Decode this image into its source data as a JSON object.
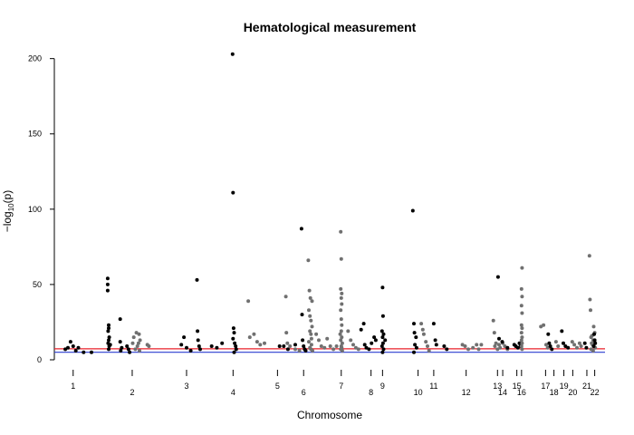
{
  "chart_data": {
    "type": "scatter",
    "title": "Hematological measurement",
    "xlabel": "Chromosome",
    "ylabel": "-log10(p)",
    "ylabel_parts": {
      "prefix": "−log",
      "sub": "10",
      "suffix": "(p)"
    },
    "ylim": [
      0,
      205
    ],
    "yticks": [
      0,
      50,
      100,
      150,
      200
    ],
    "xlim": [
      0,
      100
    ],
    "grid": false,
    "legend": "none",
    "colors": {
      "odd_chromosome": "#000000",
      "even_chromosome": "#707070",
      "threshold_red": "#e8202a",
      "threshold_blue": "#2a3bd0"
    },
    "thresholds": [
      {
        "name": "threshold-red",
        "value": 7.3,
        "color": "#e8202a"
      },
      {
        "name": "threshold-blue",
        "value": 5,
        "color": "#2a3bd0"
      }
    ],
    "chromosome_ticks": [
      {
        "label": "1",
        "pos": 1.0,
        "row": 0
      },
      {
        "label": "2",
        "pos": 12.3,
        "row": 1
      },
      {
        "label": "3",
        "pos": 22.7,
        "row": 0
      },
      {
        "label": "4",
        "pos": 31.6,
        "row": 1
      },
      {
        "label": "5",
        "pos": 40.1,
        "row": 0
      },
      {
        "label": "6",
        "pos": 45.1,
        "row": 1
      },
      {
        "label": "7",
        "pos": 52.3,
        "row": 0
      },
      {
        "label": "8",
        "pos": 58.0,
        "row": 1
      },
      {
        "label": "9",
        "pos": 60.2,
        "row": 0
      },
      {
        "label": "10",
        "pos": 67.0,
        "row": 1
      },
      {
        "label": "11",
        "pos": 70.0,
        "row": 0
      },
      {
        "label": "12",
        "pos": 76.2,
        "row": 1
      },
      {
        "label": "13",
        "pos": 82.2,
        "row": 0
      },
      {
        "label": "14",
        "pos": 83.2,
        "row": 1
      },
      {
        "label": "15",
        "pos": 85.9,
        "row": 0
      },
      {
        "label": "16",
        "pos": 86.8,
        "row": 1
      },
      {
        "label": "17",
        "pos": 91.4,
        "row": 0
      },
      {
        "label": "18",
        "pos": 93.0,
        "row": 1
      },
      {
        "label": "19",
        "pos": 94.9,
        "row": 0
      },
      {
        "label": "20",
        "pos": 96.6,
        "row": 1
      },
      {
        "label": "21",
        "pos": 99.3,
        "row": 0
      },
      {
        "label": "22",
        "pos": 100.8,
        "row": 1
      }
    ],
    "points": [
      [
        -0.5,
        7,
        1
      ],
      [
        0,
        8,
        1
      ],
      [
        0.5,
        12,
        1
      ],
      [
        1,
        9,
        1
      ],
      [
        1.5,
        6,
        1
      ],
      [
        2,
        8,
        1
      ],
      [
        3,
        5,
        1
      ],
      [
        4.5,
        5,
        1
      ],
      [
        7.6,
        54,
        1
      ],
      [
        7.6,
        50,
        1
      ],
      [
        7.6,
        46,
        1
      ],
      [
        7.8,
        23,
        1
      ],
      [
        7.8,
        21,
        1
      ],
      [
        7.7,
        19,
        1
      ],
      [
        7.9,
        15,
        1
      ],
      [
        7.8,
        13,
        1
      ],
      [
        7.7,
        11,
        1
      ],
      [
        7.9,
        9,
        1
      ],
      [
        7.8,
        7,
        1
      ],
      [
        8.1,
        10,
        1
      ],
      [
        10,
        27,
        1
      ],
      [
        10,
        12,
        1
      ],
      [
        10.3,
        8,
        1
      ],
      [
        10.1,
        6,
        1
      ],
      [
        11.3,
        9,
        1
      ],
      [
        11.6,
        7,
        1
      ],
      [
        11.8,
        5,
        1
      ],
      [
        12.6,
        15,
        0
      ],
      [
        13.1,
        18,
        0
      ],
      [
        13.6,
        17,
        0
      ],
      [
        13.8,
        13,
        0
      ],
      [
        13.5,
        11,
        0
      ],
      [
        13.3,
        9,
        0
      ],
      [
        12.9,
        7,
        0
      ],
      [
        13.7,
        6,
        0
      ],
      [
        12.4,
        11,
        0
      ],
      [
        15.2,
        10,
        0
      ],
      [
        15.5,
        9,
        0
      ],
      [
        21.7,
        10,
        1
      ],
      [
        22.2,
        15,
        1
      ],
      [
        22.7,
        8,
        1
      ],
      [
        23.5,
        6,
        1
      ],
      [
        24.7,
        53,
        1
      ],
      [
        24.8,
        19,
        1
      ],
      [
        24.9,
        13,
        1
      ],
      [
        25.1,
        9,
        1
      ],
      [
        25.3,
        7,
        1
      ],
      [
        27.5,
        9,
        1
      ],
      [
        28.5,
        8,
        1
      ],
      [
        29.5,
        11,
        1
      ],
      [
        31.5,
        203,
        1
      ],
      [
        31.6,
        111,
        1
      ],
      [
        31.7,
        21,
        1
      ],
      [
        31.8,
        18,
        1
      ],
      [
        31.6,
        14,
        1
      ],
      [
        31.9,
        11,
        1
      ],
      [
        32.1,
        9,
        1
      ],
      [
        32.2,
        7,
        1
      ],
      [
        31.8,
        5,
        1
      ],
      [
        34.5,
        39,
        0
      ],
      [
        34.8,
        15,
        0
      ],
      [
        35.6,
        17,
        0
      ],
      [
        36.2,
        12,
        0
      ],
      [
        36.8,
        10,
        0
      ],
      [
        37.6,
        11,
        0
      ],
      [
        41.7,
        42,
        0
      ],
      [
        41.8,
        18,
        0
      ],
      [
        42,
        11,
        0
      ],
      [
        42.5,
        9,
        0
      ],
      [
        43.5,
        7,
        0
      ],
      [
        44.3,
        6,
        0
      ],
      [
        40.5,
        9,
        1
      ],
      [
        41.3,
        9,
        1
      ],
      [
        42.1,
        7,
        1
      ],
      [
        43.5,
        10,
        1
      ],
      [
        44.7,
        87,
        1
      ],
      [
        44.8,
        30,
        1
      ],
      [
        44.9,
        13,
        1
      ],
      [
        45.1,
        9,
        1
      ],
      [
        45.3,
        7,
        1
      ],
      [
        45.5,
        6,
        1
      ],
      [
        46,
        66,
        0
      ],
      [
        46.2,
        46,
        0
      ],
      [
        46.4,
        41,
        0
      ],
      [
        46.7,
        39,
        0
      ],
      [
        46.1,
        33,
        0
      ],
      [
        46.3,
        29,
        0
      ],
      [
        46.5,
        26,
        0
      ],
      [
        46.7,
        22,
        0
      ],
      [
        46.3,
        19,
        0
      ],
      [
        46.5,
        17,
        0
      ],
      [
        46.6,
        14,
        0
      ],
      [
        46.1,
        12,
        0
      ],
      [
        46.6,
        10,
        0
      ],
      [
        46.3,
        8,
        0
      ],
      [
        46.5,
        7,
        0
      ],
      [
        46.8,
        6,
        0
      ],
      [
        47.5,
        17,
        0
      ],
      [
        48,
        13,
        0
      ],
      [
        48.5,
        9,
        0
      ],
      [
        49.1,
        8,
        0
      ],
      [
        49.6,
        14,
        0
      ],
      [
        50.2,
        9,
        0
      ],
      [
        50.8,
        7,
        0
      ],
      [
        51.4,
        9,
        0
      ],
      [
        52.2,
        85,
        0
      ],
      [
        52.3,
        67,
        0
      ],
      [
        52.2,
        47,
        0
      ],
      [
        52.4,
        44,
        0
      ],
      [
        52.3,
        41,
        0
      ],
      [
        52.4,
        37,
        0
      ],
      [
        52.2,
        33,
        0
      ],
      [
        52.3,
        27,
        0
      ],
      [
        52.4,
        23,
        0
      ],
      [
        52.3,
        19,
        0
      ],
      [
        52.1,
        17,
        0
      ],
      [
        52.4,
        15,
        0
      ],
      [
        52.2,
        13,
        0
      ],
      [
        52.5,
        11,
        0
      ],
      [
        52.3,
        9,
        0
      ],
      [
        52.4,
        8,
        0
      ],
      [
        52.2,
        7,
        0
      ],
      [
        52.5,
        6,
        0
      ],
      [
        53.6,
        19,
        0
      ],
      [
        54.1,
        13,
        0
      ],
      [
        54.6,
        10,
        0
      ],
      [
        55.1,
        8,
        0
      ],
      [
        55.6,
        7,
        0
      ],
      [
        56.1,
        20,
        1
      ],
      [
        56.6,
        24,
        1
      ],
      [
        56.8,
        10,
        1
      ],
      [
        57.1,
        8,
        1
      ],
      [
        57.6,
        7,
        1
      ],
      [
        58.1,
        11,
        1
      ],
      [
        58.6,
        15,
        1
      ],
      [
        58.9,
        13,
        1
      ],
      [
        60.2,
        48,
        1
      ],
      [
        60.3,
        29,
        1
      ],
      [
        60.1,
        19,
        1
      ],
      [
        60.4,
        17,
        1
      ],
      [
        60.2,
        15,
        1
      ],
      [
        60.3,
        11,
        1
      ],
      [
        60.1,
        9,
        1
      ],
      [
        60.4,
        7,
        1
      ],
      [
        60.2,
        5,
        1
      ],
      [
        60.7,
        13,
        1
      ],
      [
        66,
        99,
        1
      ],
      [
        66.2,
        24,
        1
      ],
      [
        66.3,
        18,
        1
      ],
      [
        66.6,
        15,
        1
      ],
      [
        66.4,
        10,
        1
      ],
      [
        66.7,
        8,
        1
      ],
      [
        66.2,
        5,
        1
      ],
      [
        67.6,
        24,
        0
      ],
      [
        67.9,
        20,
        0
      ],
      [
        68.1,
        17,
        0
      ],
      [
        68.5,
        12,
        0
      ],
      [
        68.8,
        9,
        0
      ],
      [
        69.1,
        6,
        0
      ],
      [
        70,
        24,
        1
      ],
      [
        70.3,
        13,
        1
      ],
      [
        70.5,
        10,
        1
      ],
      [
        72,
        9,
        1
      ],
      [
        72.5,
        7,
        1
      ],
      [
        75.5,
        10,
        0
      ],
      [
        76,
        9,
        0
      ],
      [
        76.6,
        7,
        0
      ],
      [
        77.5,
        8,
        0
      ],
      [
        78.2,
        10,
        0
      ],
      [
        78.6,
        7,
        0
      ],
      [
        79.1,
        10,
        0
      ],
      [
        81.4,
        26,
        0
      ],
      [
        81.6,
        18,
        0
      ],
      [
        81.9,
        11,
        0
      ],
      [
        81.7,
        9,
        0
      ],
      [
        82.2,
        7,
        0
      ],
      [
        82.5,
        10,
        0
      ],
      [
        82.7,
        8,
        0
      ],
      [
        83.2,
        11,
        0
      ],
      [
        83.6,
        9,
        0
      ],
      [
        84.1,
        7,
        0
      ],
      [
        82.3,
        55,
        1
      ],
      [
        82.5,
        14,
        1
      ],
      [
        83.1,
        12,
        1
      ],
      [
        84.1,
        8,
        1
      ],
      [
        85.4,
        10,
        1
      ],
      [
        85.7,
        9,
        1
      ],
      [
        86.1,
        8,
        1
      ],
      [
        86.4,
        11,
        1
      ],
      [
        86.6,
        9,
        1
      ],
      [
        86.9,
        61,
        0
      ],
      [
        86.8,
        47,
        0
      ],
      [
        86.9,
        42,
        0
      ],
      [
        86.8,
        36,
        0
      ],
      [
        86.9,
        31,
        0
      ],
      [
        86.8,
        23,
        0
      ],
      [
        86.9,
        21,
        0
      ],
      [
        86.8,
        18,
        0
      ],
      [
        86.9,
        15,
        0
      ],
      [
        86.8,
        13,
        0
      ],
      [
        86.9,
        11,
        0
      ],
      [
        86.8,
        9,
        0
      ],
      [
        86.9,
        7,
        0
      ],
      [
        90.5,
        22,
        0
      ],
      [
        91,
        23,
        0
      ],
      [
        91.5,
        10,
        0
      ],
      [
        91.8,
        8,
        0
      ],
      [
        91.9,
        17,
        1
      ],
      [
        92.1,
        11,
        1
      ],
      [
        92.3,
        9,
        1
      ],
      [
        92.6,
        7,
        1
      ],
      [
        93.4,
        12,
        0
      ],
      [
        93.8,
        9,
        0
      ],
      [
        94.5,
        19,
        1
      ],
      [
        94.8,
        11,
        1
      ],
      [
        95.2,
        9,
        1
      ],
      [
        95.7,
        8,
        1
      ],
      [
        96.5,
        12,
        0
      ],
      [
        96.9,
        10,
        0
      ],
      [
        97.4,
        8,
        0
      ],
      [
        97.9,
        11,
        0
      ],
      [
        98.2,
        9,
        0
      ],
      [
        98.9,
        11,
        1
      ],
      [
        99.2,
        8,
        1
      ],
      [
        99.8,
        69,
        0
      ],
      [
        99.9,
        40,
        0
      ],
      [
        100,
        33,
        0
      ],
      [
        100.6,
        22,
        0
      ],
      [
        100.8,
        18,
        0
      ],
      [
        100.3,
        16,
        0
      ],
      [
        100.1,
        15,
        0
      ],
      [
        100.5,
        13,
        0
      ],
      [
        100.7,
        12,
        0
      ],
      [
        100.2,
        11,
        0
      ],
      [
        100.4,
        10,
        0
      ],
      [
        100.6,
        9,
        0
      ],
      [
        100.9,
        8,
        0
      ],
      [
        100.1,
        7,
        0
      ],
      [
        100.5,
        6,
        0
      ],
      [
        100.7,
        17,
        1
      ],
      [
        100.8,
        13,
        1
      ],
      [
        100.9,
        11,
        1
      ],
      [
        100.6,
        9,
        1
      ]
    ]
  }
}
